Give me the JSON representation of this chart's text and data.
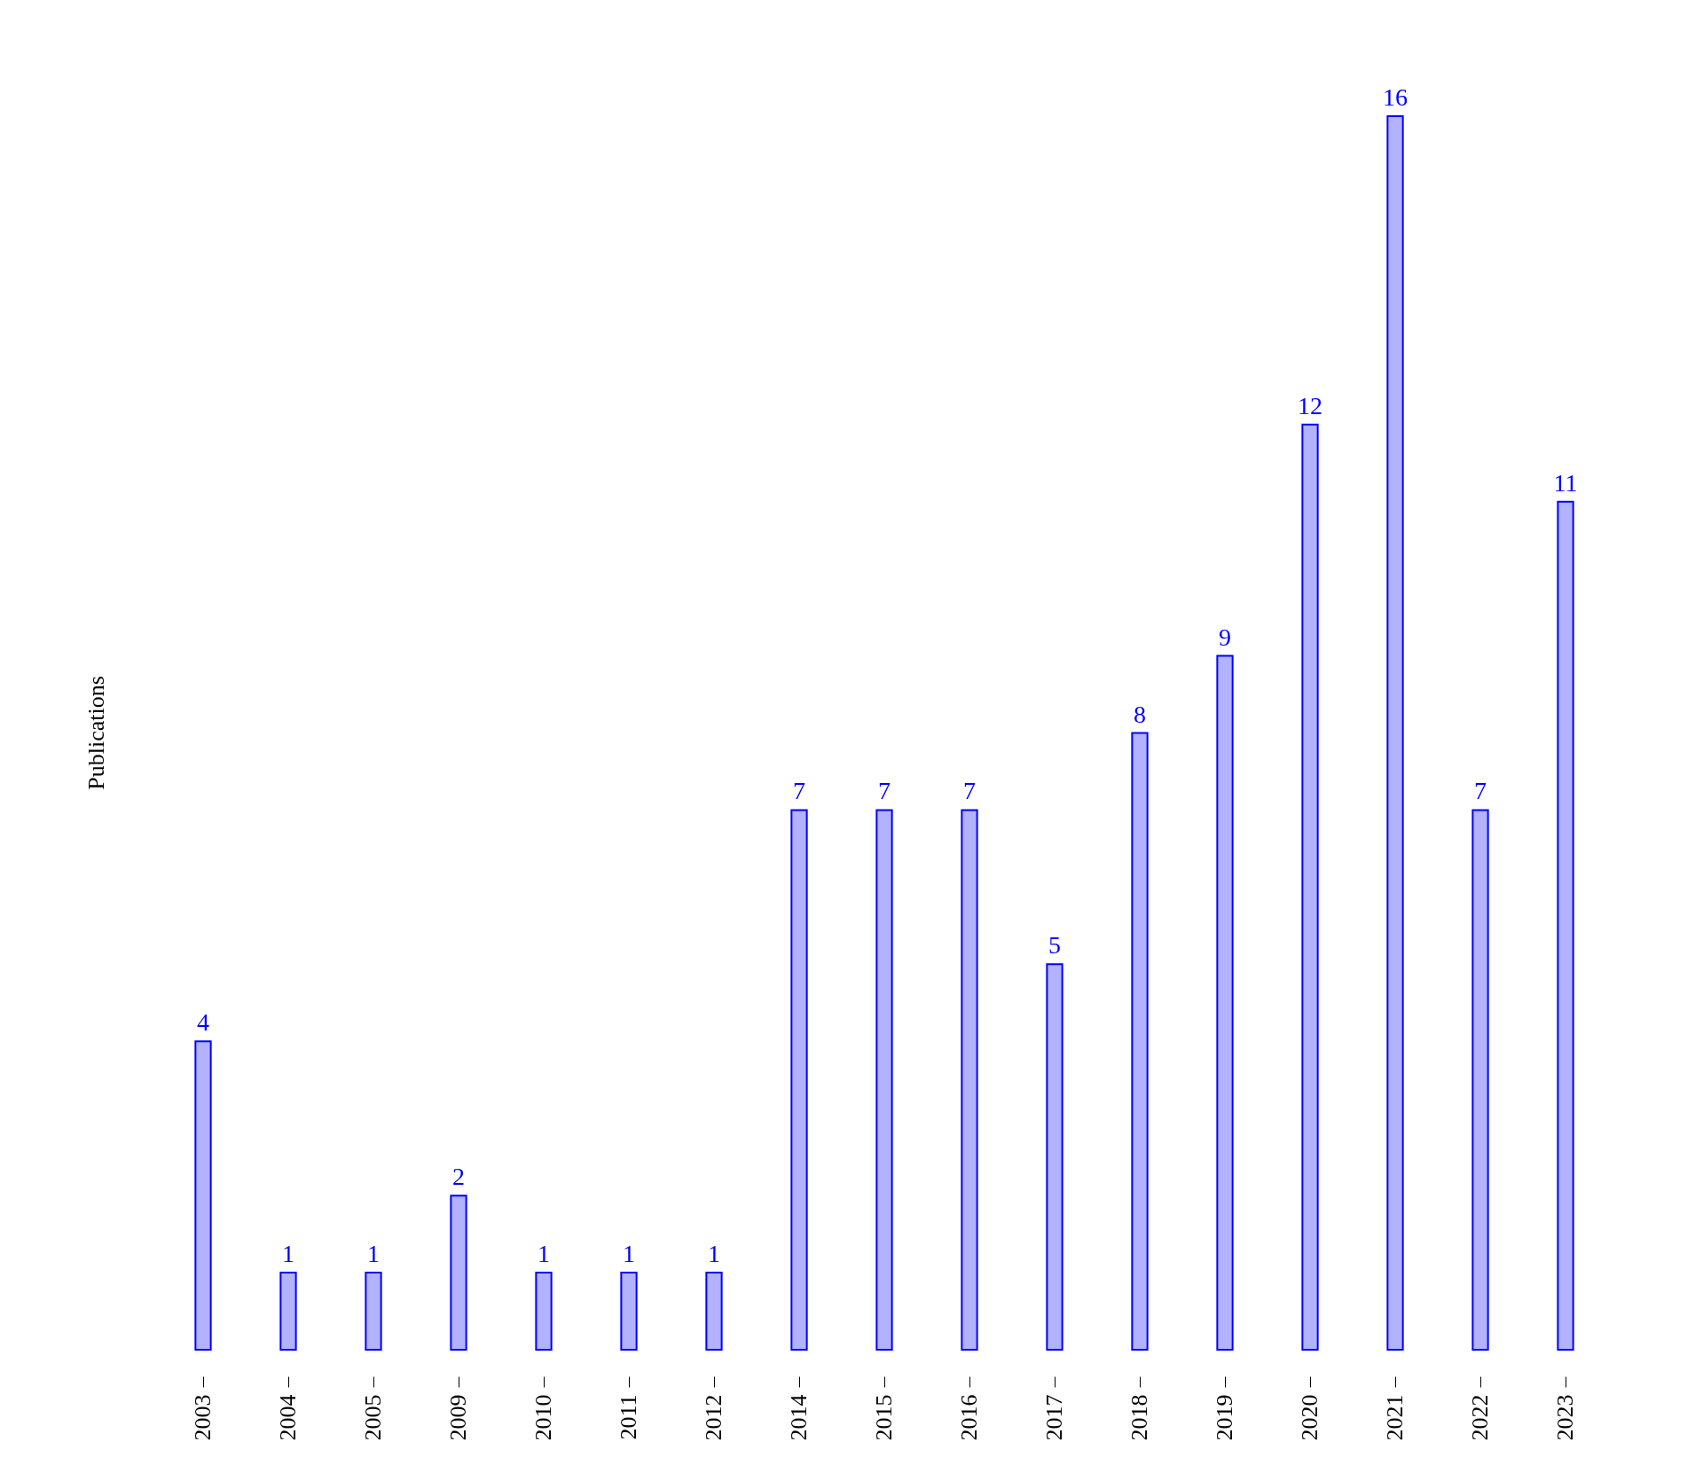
{
  "chart_data": {
    "type": "bar",
    "ylabel": "Publications",
    "categories": [
      "2003",
      "2004",
      "2005",
      "2009",
      "2010",
      "2011",
      "2012",
      "2014",
      "2015",
      "2016",
      "2017",
      "2018",
      "2019",
      "2020",
      "2021",
      "2022",
      "2023"
    ],
    "values": [
      4,
      1,
      1,
      2,
      1,
      1,
      1,
      7,
      7,
      7,
      5,
      8,
      9,
      12,
      16,
      7,
      11
    ],
    "color": "#0000ff",
    "data_labels": true
  }
}
